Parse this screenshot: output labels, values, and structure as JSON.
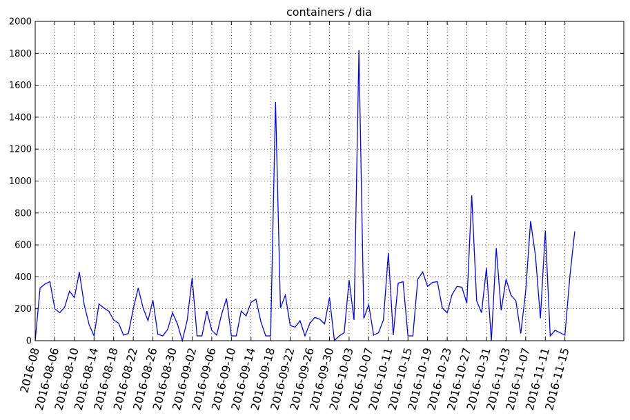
{
  "chart_data": {
    "type": "line",
    "title": "containers / dia",
    "xlabel": "",
    "ylabel": "",
    "ylim": [
      0,
      2000
    ],
    "yticks": [
      "0",
      "200",
      "400",
      "600",
      "800",
      "1000",
      "1200",
      "1400",
      "1600",
      "1800",
      "2000"
    ],
    "xtick_labels": [
      "2016-08",
      "2016-08-06",
      "2016-08-10",
      "2016-08-14",
      "2016-08-18",
      "2016-08-22",
      "2016-08-26",
      "2016-08-30",
      "2016-09-02",
      "2016-09-06",
      "2016-09-10",
      "2016-09-14",
      "2016-09-18",
      "2016-09-22",
      "2016-09-26",
      "2016-09-30",
      "2016-10-03",
      "2016-10-07",
      "2016-10-11",
      "2016-10-15",
      "2016-10-19",
      "2016-10-23",
      "2016-10-27",
      "2016-10-31",
      "2016-11-03",
      "2016-11-07",
      "2016-11-11",
      "2016-11-15"
    ],
    "grid": true,
    "line_color": "#0000ff",
    "series": [
      {
        "values": [
          0,
          330,
          355,
          370,
          200,
          175,
          210,
          310,
          270,
          430,
          225,
          100,
          30,
          230,
          205,
          185,
          130,
          110,
          35,
          45,
          200,
          330,
          205,
          125,
          255,
          40,
          30,
          70,
          175,
          105,
          0,
          130,
          395,
          30,
          30,
          185,
          65,
          35,
          165,
          265,
          30,
          30,
          185,
          155,
          240,
          260,
          120,
          30,
          30,
          1495,
          205,
          285,
          95,
          85,
          125,
          30,
          110,
          145,
          135,
          105,
          270,
          0,
          30,
          50,
          380,
          130,
          1820,
          140,
          225,
          35,
          50,
          130,
          550,
          35,
          360,
          370,
          30,
          30,
          385,
          430,
          340,
          365,
          370,
          205,
          175,
          290,
          340,
          335,
          235,
          910,
          250,
          175,
          455,
          0,
          580,
          190,
          385,
          285,
          250,
          45,
          310,
          750,
          530,
          140,
          690,
          30,
          65,
          50,
          35,
          400,
          685
        ]
      }
    ]
  }
}
